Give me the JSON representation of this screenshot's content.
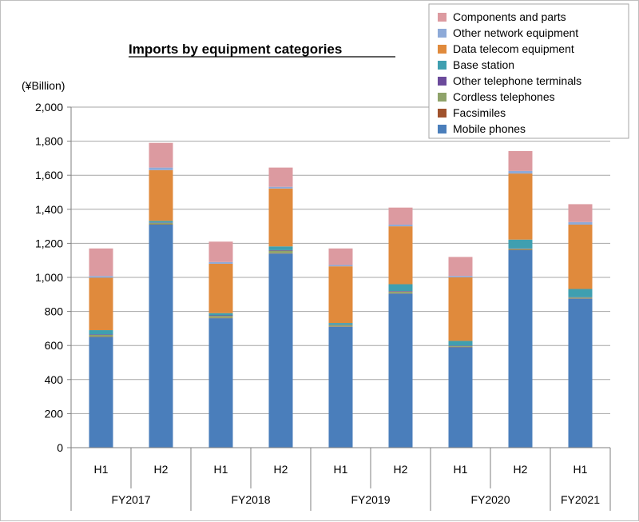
{
  "chart_data": {
    "type": "bar",
    "stacked": true,
    "title": "Imports by equipment categories",
    "unit_label": "(¥Billion)",
    "ylim": [
      0,
      2000
    ],
    "yticks": [
      0,
      200,
      400,
      600,
      800,
      1000,
      1200,
      1400,
      1600,
      1800,
      2000
    ],
    "ytick_labels": [
      "0",
      "200",
      "400",
      "600",
      "800",
      "1,000",
      "1,200",
      "1,400",
      "1,600",
      "1,800",
      "2,000"
    ],
    "grid": true,
    "legend_position": "top-right",
    "categories": [
      "H1",
      "H2",
      "H1",
      "H2",
      "H1",
      "H2",
      "H1",
      "H2",
      "H1"
    ],
    "groups": [
      {
        "label": "FY2017",
        "span": 2
      },
      {
        "label": "FY2018",
        "span": 2
      },
      {
        "label": "FY2019",
        "span": 2
      },
      {
        "label": "FY2020",
        "span": 2
      },
      {
        "label": "FY2021",
        "span": 1
      }
    ],
    "series": [
      {
        "name": "Mobile phones",
        "color": "#4a7ebb",
        "values": [
          650,
          1310,
          760,
          1140,
          710,
          905,
          590,
          1160,
          875
        ]
      },
      {
        "name": "Facsimiles",
        "color": "#a0522d",
        "values": [
          2,
          2,
          2,
          2,
          2,
          2,
          2,
          2,
          2
        ]
      },
      {
        "name": "Cordless telephones",
        "color": "#8fa36a",
        "values": [
          10,
          8,
          12,
          15,
          8,
          10,
          5,
          6,
          5
        ]
      },
      {
        "name": "Other telephone terminals",
        "color": "#6b4a9b",
        "values": [
          3,
          2,
          3,
          3,
          2,
          3,
          2,
          2,
          2
        ]
      },
      {
        "name": "Base station",
        "color": "#3f9fb0",
        "values": [
          25,
          10,
          13,
          22,
          10,
          40,
          28,
          52,
          48
        ]
      },
      {
        "name": "Data telecom equipment",
        "color": "#e08a3c",
        "values": [
          308,
          298,
          290,
          340,
          333,
          340,
          373,
          388,
          378
        ]
      },
      {
        "name": "Other network equipment",
        "color": "#8eaad8",
        "values": [
          10,
          15,
          10,
          10,
          8,
          10,
          8,
          15,
          15
        ]
      },
      {
        "name": "Components and parts",
        "color": "#dc9aa0",
        "values": [
          162,
          145,
          120,
          113,
          97,
          100,
          112,
          117,
          105
        ]
      }
    ]
  }
}
